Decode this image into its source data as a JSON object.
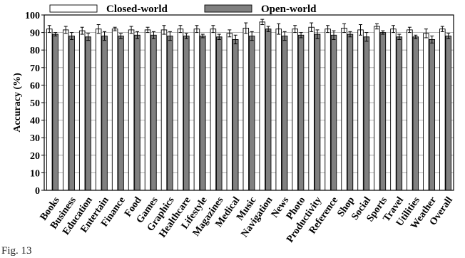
{
  "chart_data": {
    "type": "bar",
    "ylabel": "Accuracy (%)",
    "xlabel": "",
    "ylim": [
      0,
      100
    ],
    "yticks": [
      0,
      10,
      20,
      30,
      40,
      50,
      60,
      70,
      80,
      90,
      100
    ],
    "grid": true,
    "legend_position": "top",
    "categories": [
      "Books",
      "Business",
      "Education",
      "Entertain",
      "Finance",
      "Food",
      "Games",
      "Graphics",
      "Healthcare",
      "Lifestyle",
      "Magazines",
      "Medical",
      "Music",
      "Navigation",
      "News",
      "Photo",
      "Productivity",
      "Reference",
      "Shop",
      "Social",
      "Sports",
      "Travel",
      "Utilities",
      "Weather",
      "Overall"
    ],
    "series": [
      {
        "name": "Closed-world",
        "color": "#ffffff",
        "values": [
          92,
          91.5,
          91,
          92,
          92,
          91.5,
          91.5,
          91.5,
          92,
          92,
          92,
          89.5,
          92.5,
          96,
          92,
          92,
          93,
          92,
          92.5,
          91.5,
          93.5,
          92,
          91.5,
          89.5,
          92
        ],
        "errors": [
          2,
          2,
          2,
          2.5,
          1,
          2,
          1.5,
          2.5,
          2,
          2,
          2,
          2,
          3,
          1.5,
          3,
          2,
          2.5,
          2,
          2.5,
          3,
          1.5,
          2,
          1.5,
          2.5,
          1.5
        ]
      },
      {
        "name": "Open-world",
        "color": "#808080",
        "values": [
          89,
          88,
          87.5,
          88,
          88,
          88.5,
          88.5,
          88,
          88,
          88,
          87.5,
          86,
          88,
          92,
          88,
          88.5,
          89,
          88.5,
          89,
          87.5,
          90,
          87.5,
          87.5,
          86,
          88
        ],
        "errors": [
          1,
          2,
          2,
          2.5,
          1.5,
          2,
          2,
          2.5,
          1.5,
          1,
          1.5,
          2.5,
          2.5,
          1.5,
          2.5,
          1.5,
          2.5,
          2.5,
          1.5,
          2.5,
          1,
          1.5,
          1,
          2,
          1.5
        ]
      }
    ]
  },
  "caption": "Fig. 13"
}
